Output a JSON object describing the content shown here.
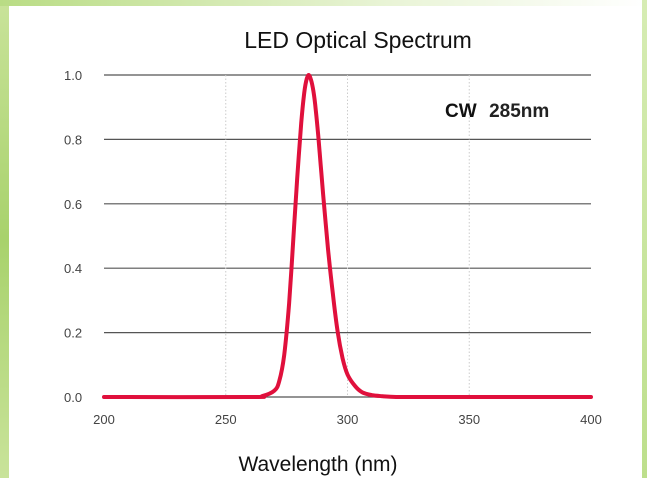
{
  "chart_data": {
    "type": "line",
    "title": "LED Optical Spectrum",
    "xlabel": "Wavelength (nm)",
    "ylabel": "",
    "xlim": [
      200,
      400
    ],
    "ylim": [
      0,
      1.0
    ],
    "x_ticks": [
      "200",
      "250",
      "300",
      "350",
      "400"
    ],
    "y_ticks": [
      "0.0",
      "0.2",
      "0.4",
      "0.6",
      "0.8",
      "1.0"
    ],
    "grid": "horizontal solid lines, vertical dotted lines",
    "annotation": {
      "prefix": "CW",
      "value": "285nm"
    },
    "series": [
      {
        "color": "#e0103c",
        "x": [
          200,
          260,
          265,
          270,
          272,
          274,
          276,
          278,
          279,
          280,
          281,
          282,
          283,
          284,
          285,
          286,
          287,
          288,
          289,
          290,
          292,
          294,
          296,
          298,
          300,
          303,
          306,
          310,
          315,
          320,
          330,
          340,
          360,
          380,
          400
        ],
        "y": [
          0.0,
          0.0,
          0.003,
          0.02,
          0.05,
          0.13,
          0.29,
          0.52,
          0.64,
          0.75,
          0.85,
          0.93,
          0.98,
          1.0,
          0.985,
          0.95,
          0.89,
          0.81,
          0.72,
          0.63,
          0.46,
          0.32,
          0.2,
          0.12,
          0.07,
          0.035,
          0.015,
          0.006,
          0.002,
          0.0,
          0.0,
          0.0,
          0.0,
          0.0,
          0.0
        ]
      }
    ]
  }
}
